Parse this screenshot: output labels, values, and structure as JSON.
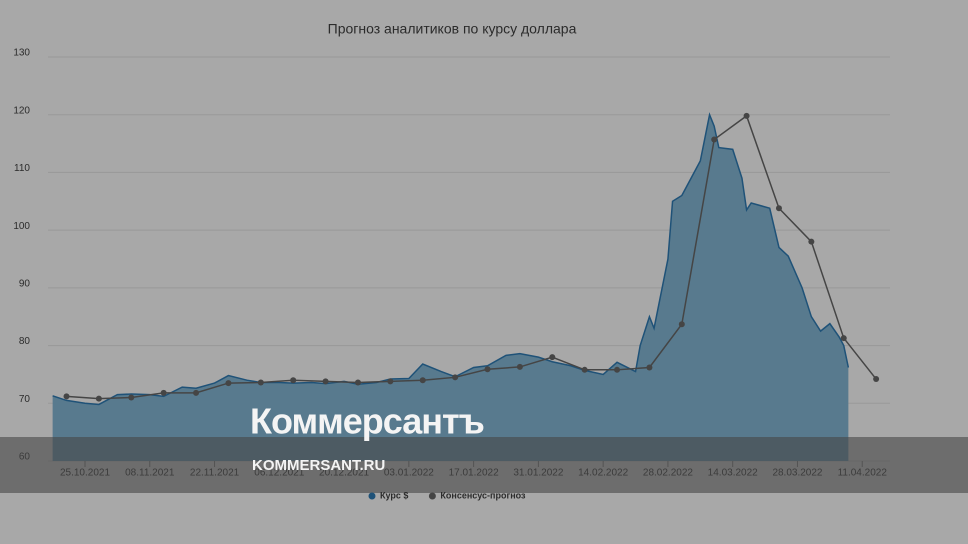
{
  "chart_data": {
    "type": "area-line",
    "title": "Прогноз аналитиков по курсу доллара",
    "xlim": [
      "17.10.2021",
      "17.04.2022"
    ],
    "xticks": [
      "25.10.2021",
      "08.11.2021",
      "22.11.2021",
      "06.12.2021",
      "20.12.2021",
      "03.01.2022",
      "17.01.2022",
      "31.01.2022",
      "14.02.2022",
      "28.02.2022",
      "14.03.2022",
      "28.03.2022",
      "11.04.2022"
    ],
    "ylim": [
      60,
      130
    ],
    "yticks": [
      60,
      70,
      80,
      90,
      100,
      110,
      120,
      130
    ],
    "grid": true,
    "legend": "bottom",
    "series": [
      {
        "name": "Курс $",
        "color": "#1f5278",
        "fill": "#587a8e",
        "type": "area",
        "x": [
          "18.10.2021",
          "21.10.2021",
          "25.10.2021",
          "28.10.2021",
          "01.11.2021",
          "04.11.2021",
          "08.11.2021",
          "11.11.2021",
          "15.11.2021",
          "18.11.2021",
          "22.11.2021",
          "25.11.2021",
          "29.11.2021",
          "02.12.2021",
          "06.12.2021",
          "09.12.2021",
          "13.12.2021",
          "16.12.2021",
          "20.12.2021",
          "23.12.2021",
          "27.12.2021",
          "30.12.2021",
          "03.01.2022",
          "06.01.2022",
          "10.01.2022",
          "13.01.2022",
          "17.01.2022",
          "20.01.2022",
          "24.01.2022",
          "27.01.2022",
          "31.01.2022",
          "03.02.2022",
          "07.02.2022",
          "10.02.2022",
          "14.02.2022",
          "17.02.2022",
          "21.02.2022",
          "22.02.2022",
          "24.02.2022",
          "25.02.2022",
          "28.02.2022",
          "01.03.2022",
          "03.03.2022",
          "04.03.2022",
          "07.03.2022",
          "09.03.2022",
          "10.03.2022",
          "11.03.2022",
          "14.03.2022",
          "16.03.2022",
          "17.03.2022",
          "18.03.2022",
          "22.03.2022",
          "24.03.2022",
          "26.03.2022",
          "29.03.2022",
          "31.03.2022",
          "02.04.2022",
          "04.04.2022",
          "06.04.2022",
          "07.04.2022",
          "08.04.2022"
        ],
        "values": [
          71.3,
          70.5,
          70.0,
          69.8,
          71.5,
          71.6,
          71.5,
          71.2,
          72.8,
          72.6,
          73.5,
          74.8,
          74.0,
          73.6,
          73.6,
          73.5,
          73.6,
          73.4,
          73.8,
          73.3,
          73.6,
          74.2,
          74.3,
          76.8,
          75.5,
          74.6,
          76.2,
          76.5,
          78.3,
          78.6,
          78.0,
          77.2,
          76.5,
          75.7,
          75.0,
          77.1,
          75.5,
          80.0,
          85.0,
          83.0,
          95.0,
          105.0,
          106.0,
          107.5,
          112.0,
          120.0,
          118.0,
          114.3,
          114.0,
          109.0,
          103.5,
          104.7,
          103.8,
          97.0,
          95.5,
          90.0,
          85.0,
          82.5,
          83.8,
          81.5,
          80.0,
          76.2
        ]
      },
      {
        "name": "Консенсус-прогноз",
        "color": "#454545",
        "type": "line",
        "x": [
          "21.10.2021",
          "28.10.2021",
          "04.11.2021",
          "11.11.2021",
          "18.11.2021",
          "25.11.2021",
          "02.12.2021",
          "09.12.2021",
          "16.12.2021",
          "23.12.2021",
          "30.12.2021",
          "06.01.2022",
          "13.01.2022",
          "20.01.2022",
          "27.01.2022",
          "03.02.2022",
          "10.02.2022",
          "17.02.2022",
          "24.02.2022",
          "03.03.2022",
          "10.03.2022",
          "17.03.2022",
          "24.03.2022",
          "31.03.2022",
          "07.04.2022",
          "14.04.2022"
        ],
        "values": [
          71.2,
          70.8,
          71.0,
          71.8,
          71.8,
          73.5,
          73.6,
          74.0,
          73.8,
          73.6,
          73.8,
          74.0,
          74.5,
          75.9,
          76.3,
          78.0,
          75.8,
          75.8,
          76.2,
          83.7,
          115.7,
          119.8,
          103.8,
          98.0,
          81.3,
          74.2
        ]
      }
    ]
  },
  "overlay": {
    "logo": "Коммерсантъ",
    "site": "KOMMERSANT.RU"
  }
}
